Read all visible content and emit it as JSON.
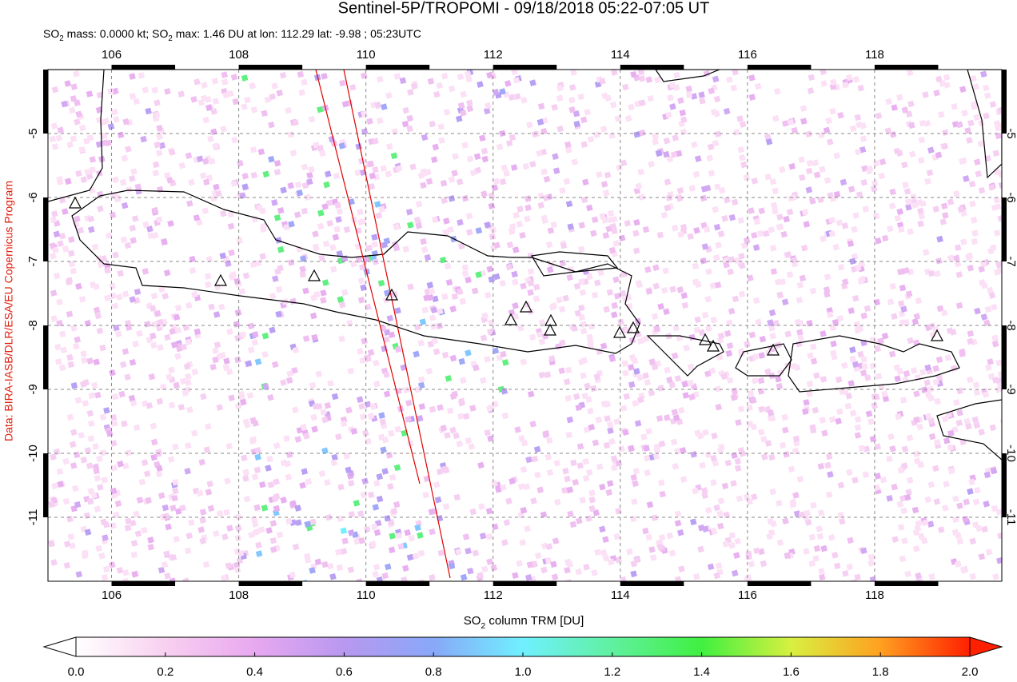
{
  "chart_data": {
    "type": "map",
    "title": "Sentinel-5P/TROPOMI - 09/18/2018 05:22-07:05 UT",
    "subtitle_parts": [
      "SO",
      "2",
      " mass: 0.0000 kt; SO",
      "2",
      " max: 1.46 DU at lon: 112.29 lat: -9.98 ; 05:23UTC"
    ],
    "colorbar_label_parts": [
      "SO",
      "2",
      " column TRM [DU]"
    ],
    "credit": "Data: BIRA-IASB/DLR/ESA/EU Copernicus Program",
    "xlim": [
      105,
      120
    ],
    "ylim": [
      -12,
      -4
    ],
    "xticks": [
      106,
      108,
      110,
      112,
      114,
      116,
      118
    ],
    "yticks": [
      -5,
      -6,
      -7,
      -8,
      -9,
      -10,
      -11
    ],
    "grid": true,
    "colorbar_lim": [
      0,
      2
    ],
    "colorbar_ticks": [
      {
        "value": 0,
        "label": "0.0"
      },
      0.2,
      0.4,
      0.6,
      0.8,
      {
        "value": 1,
        "label": "1.0"
      },
      1.2,
      1.4,
      1.6,
      1.8,
      {
        "value": 2,
        "label": "2.0"
      }
    ]
  }
}
